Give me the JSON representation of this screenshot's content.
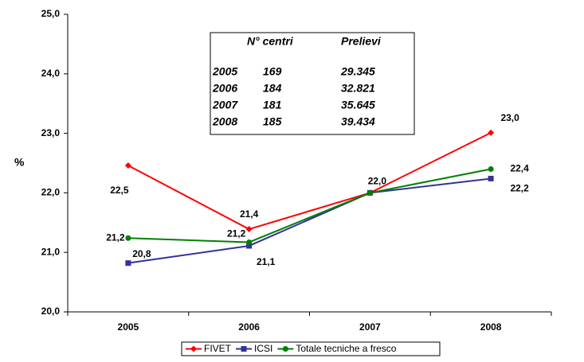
{
  "chart_data": {
    "type": "line",
    "y_label": "%",
    "categories": [
      "2005",
      "2006",
      "2007",
      "2008"
    ],
    "ylim": [
      20,
      25
    ],
    "yticks": [
      {
        "value": 20,
        "label": "20,0"
      },
      {
        "value": 21,
        "label": "21,0"
      },
      {
        "value": 22,
        "label": "22,0"
      },
      {
        "value": 23,
        "label": "23,0"
      },
      {
        "value": 24,
        "label": "24,0"
      },
      {
        "value": 25,
        "label": "25,0"
      }
    ],
    "series": [
      {
        "name": "FIVET",
        "color": "#ff0000",
        "marker": "diamond",
        "values": [
          22.46,
          21.39,
          22.0,
          23.01
        ],
        "value_labels": [
          "22,5",
          "21,4",
          "22,0",
          "23,0"
        ]
      },
      {
        "name": "ICSI",
        "color": "#333399",
        "marker": "square",
        "values": [
          20.82,
          21.11,
          22.0,
          22.24
        ],
        "value_labels": [
          "20,8",
          "21,1",
          null,
          "22,2"
        ]
      },
      {
        "name": "Totale tecniche a fresco",
        "color": "#008000",
        "marker": "circle",
        "values": [
          21.24,
          21.17,
          22.0,
          22.4
        ],
        "value_labels": [
          "21,2",
          "21,2",
          null,
          "22,4"
        ]
      }
    ],
    "table": {
      "header": [
        "N° centri",
        "Prelievi"
      ],
      "rows": [
        [
          "2005",
          "169",
          "29.345"
        ],
        [
          "2006",
          "184",
          "32.821"
        ],
        [
          "2007",
          "181",
          "35.645"
        ],
        [
          "2008",
          "185",
          "39.434"
        ]
      ]
    }
  }
}
